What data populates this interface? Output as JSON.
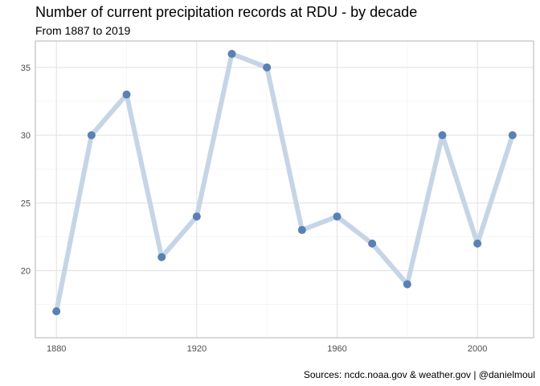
{
  "chart_data": {
    "type": "line",
    "title": "Number of current precipitation records at RDU - by decade",
    "subtitle": "From 1887 to 2019",
    "caption": "Sources: ncdc.noaa.gov & weather.gov | @danielmoul",
    "xlabel": "",
    "ylabel": "",
    "x": [
      1880,
      1890,
      1900,
      1910,
      1920,
      1930,
      1940,
      1950,
      1960,
      1970,
      1980,
      1990,
      2000,
      2010
    ],
    "series": [
      {
        "values": [
          17,
          30,
          33,
          21,
          24,
          36,
          35,
          23,
          24,
          22,
          19,
          30,
          22,
          30
        ]
      }
    ],
    "xlim": [
      1874,
      2016
    ],
    "ylim": [
      15.05,
      36.95
    ],
    "x_ticks": [
      1880,
      1920,
      1960,
      2000
    ],
    "y_ticks": [
      20,
      25,
      30,
      35
    ],
    "grid": true,
    "line_color": "#c6d5e6",
    "point_color": "#5981b3",
    "grid_major_color": "#e0e0e0",
    "grid_minor_color": "#f0f0f0",
    "border_color": "#b3b3b3"
  }
}
